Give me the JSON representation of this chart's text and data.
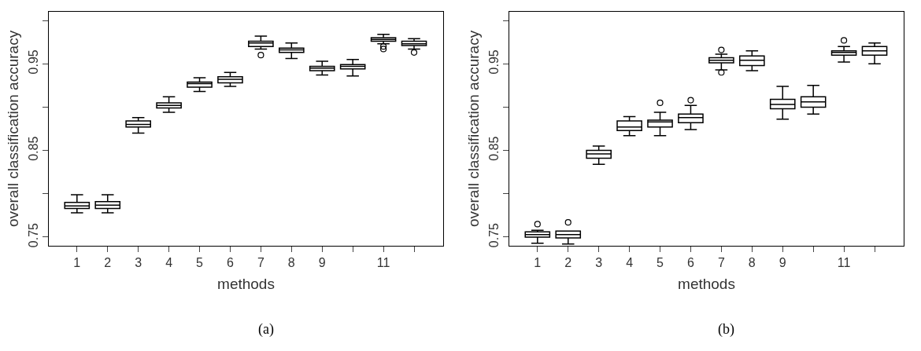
{
  "chart_data": [
    {
      "type": "box",
      "xlabel": "methods",
      "ylabel": "overall classification accuracy",
      "annotations": [
        "(a)"
      ],
      "categories": [
        "1",
        "2",
        "3",
        "4",
        "5",
        "6",
        "7",
        "8",
        "9",
        null,
        "11",
        null
      ],
      "ylim": [
        0.74,
        1.01
      ],
      "yticks": [
        0.75,
        {
          "value": 0.8,
          "label": null
        },
        0.85,
        {
          "value": 0.9,
          "label": null
        },
        0.95,
        {
          "value": 1.0,
          "label": null
        }
      ],
      "boxes": [
        {
          "low": 0.778,
          "q1": 0.783,
          "median": 0.786,
          "q3": 0.79,
          "high": 0.799
        },
        {
          "low": 0.778,
          "q1": 0.783,
          "median": 0.787,
          "q3": 0.791,
          "high": 0.799
        },
        {
          "low": 0.87,
          "q1": 0.877,
          "median": 0.88,
          "q3": 0.884,
          "high": 0.888
        },
        {
          "low": 0.894,
          "q1": 0.899,
          "median": 0.902,
          "q3": 0.905,
          "high": 0.912
        },
        {
          "low": 0.918,
          "q1": 0.923,
          "median": 0.927,
          "q3": 0.929,
          "high": 0.934
        },
        {
          "low": 0.924,
          "q1": 0.928,
          "median": 0.932,
          "q3": 0.935,
          "high": 0.94
        },
        {
          "low": 0.967,
          "q1": 0.97,
          "median": 0.974,
          "q3": 0.976,
          "high": 0.982,
          "outliers": [
            0.96
          ]
        },
        {
          "low": 0.956,
          "q1": 0.963,
          "median": 0.966,
          "q3": 0.968,
          "high": 0.974
        },
        {
          "low": 0.937,
          "q1": 0.942,
          "median": 0.945,
          "q3": 0.947,
          "high": 0.953
        },
        {
          "low": 0.936,
          "q1": 0.944,
          "median": 0.947,
          "q3": 0.949,
          "high": 0.955
        },
        {
          "low": 0.973,
          "q1": 0.976,
          "median": 0.978,
          "q3": 0.98,
          "high": 0.984,
          "outliers": [
            0.97,
            0.967
          ]
        },
        {
          "low": 0.967,
          "q1": 0.971,
          "median": 0.973,
          "q3": 0.976,
          "high": 0.979,
          "outliers": [
            0.963
          ]
        }
      ]
    },
    {
      "type": "box",
      "xlabel": "methods",
      "ylabel": "overall classification accuracy",
      "annotations": [
        "(b)"
      ],
      "categories": [
        "1",
        "2",
        "3",
        "4",
        "5",
        "6",
        "7",
        "8",
        "9",
        null,
        "11",
        null
      ],
      "ylim": [
        0.74,
        1.01
      ],
      "yticks": [
        0.75,
        {
          "value": 0.8,
          "label": null
        },
        0.85,
        {
          "value": 0.9,
          "label": null
        },
        0.95,
        {
          "value": 1.0,
          "label": null
        }
      ],
      "boxes": [
        {
          "low": 0.743,
          "q1": 0.75,
          "median": 0.753,
          "q3": 0.756,
          "high": 0.758,
          "outliers": [
            0.765
          ]
        },
        {
          "low": 0.742,
          "q1": 0.749,
          "median": 0.753,
          "q3": 0.757,
          "high": 0.757,
          "outliers": [
            0.767
          ]
        },
        {
          "low": 0.834,
          "q1": 0.841,
          "median": 0.846,
          "q3": 0.85,
          "high": 0.855
        },
        {
          "low": 0.867,
          "q1": 0.873,
          "median": 0.877,
          "q3": 0.884,
          "high": 0.889
        },
        {
          "low": 0.867,
          "q1": 0.877,
          "median": 0.883,
          "q3": 0.885,
          "high": 0.894,
          "outliers": [
            0.905
          ]
        },
        {
          "low": 0.874,
          "q1": 0.882,
          "median": 0.888,
          "q3": 0.892,
          "high": 0.902,
          "outliers": [
            0.908
          ]
        },
        {
          "low": 0.943,
          "q1": 0.951,
          "median": 0.954,
          "q3": 0.957,
          "high": 0.961,
          "outliers": [
            0.966,
            0.94
          ]
        },
        {
          "low": 0.942,
          "q1": 0.948,
          "median": 0.954,
          "q3": 0.959,
          "high": 0.965
        },
        {
          "low": 0.886,
          "q1": 0.898,
          "median": 0.903,
          "q3": 0.909,
          "high": 0.924
        },
        {
          "low": 0.892,
          "q1": 0.9,
          "median": 0.906,
          "q3": 0.912,
          "high": 0.925
        },
        {
          "low": 0.952,
          "q1": 0.96,
          "median": 0.963,
          "q3": 0.965,
          "high": 0.97,
          "outliers": [
            0.977
          ]
        },
        {
          "low": 0.95,
          "q1": 0.96,
          "median": 0.965,
          "q3": 0.97,
          "high": 0.974
        }
      ]
    }
  ]
}
